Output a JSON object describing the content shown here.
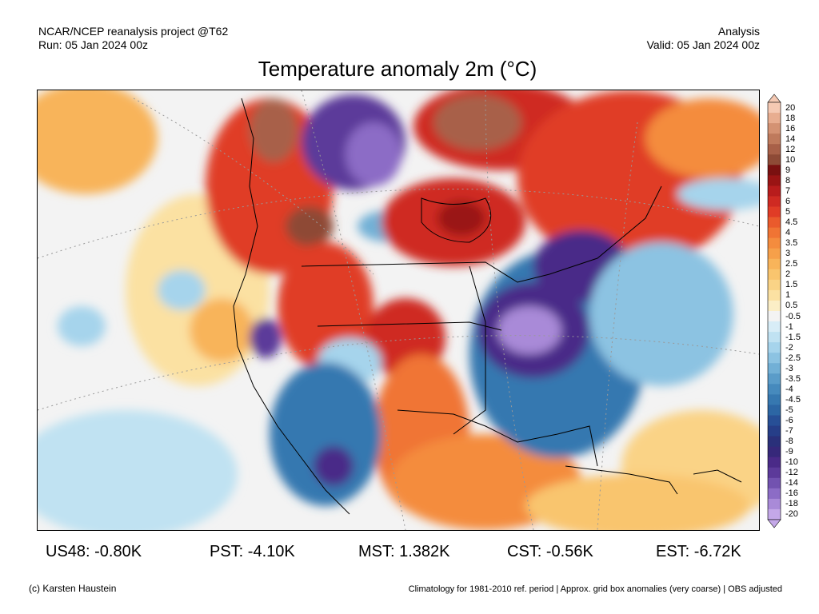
{
  "header": {
    "project": "NCAR/NCEP reanalysis project @T62",
    "run": "Run: 05 Jan 2024 00z",
    "type": "Analysis",
    "valid": "Valid: 05 Jan 2024 00z"
  },
  "title": "Temperature anomaly 2m (°C)",
  "colorbar": {
    "levels": [
      "20",
      "18",
      "16",
      "14",
      "12",
      "10",
      "9",
      "8",
      "7",
      "6",
      "5",
      "4.5",
      "4",
      "3.5",
      "3",
      "2.5",
      "2",
      "1.5",
      "1",
      "0.5",
      "-0.5",
      "-1",
      "-1.5",
      "-2",
      "-2.5",
      "-3",
      "-3.5",
      "-4",
      "-4.5",
      "-5",
      "-6",
      "-7",
      "-8",
      "-9",
      "-10",
      "-12",
      "-14",
      "-16",
      "-18",
      "-20"
    ],
    "colors": [
      "#f5c9b3",
      "#e8ad90",
      "#d49273",
      "#bf7a5c",
      "#a86048",
      "#8e4a36",
      "#7a1010",
      "#9a1414",
      "#b81c1c",
      "#cf2a22",
      "#e03c26",
      "#ea5a2c",
      "#f07434",
      "#f48c3e",
      "#f6a04a",
      "#f8b45a",
      "#f9c56e",
      "#fad386",
      "#fbe1a2",
      "#fbeec6",
      "#f3f3f3",
      "#d8edf7",
      "#c0e2f2",
      "#a6d4ec",
      "#8cc3e2",
      "#72b0d6",
      "#5a9cc9",
      "#468abd",
      "#3678b0",
      "#2c66a4",
      "#274f96",
      "#263e88",
      "#2a307a",
      "#36287a",
      "#4a2a88",
      "#5c3a9a",
      "#7252b0",
      "#8c6cc6",
      "#a98ad8",
      "#c4a8e8"
    ]
  },
  "stats": {
    "us48": "US48: -0.80K",
    "pst": "PST: -4.10K",
    "mst": "MST: 1.382K",
    "cst": "CST: -0.56K",
    "est": "EST: -6.72K"
  },
  "footer": {
    "credit": "(c) Karsten Haustein",
    "note": "Climatology for 1981-2010 ref. period | Approx. grid box anomalies (very coarse) | OBS adjusted"
  }
}
